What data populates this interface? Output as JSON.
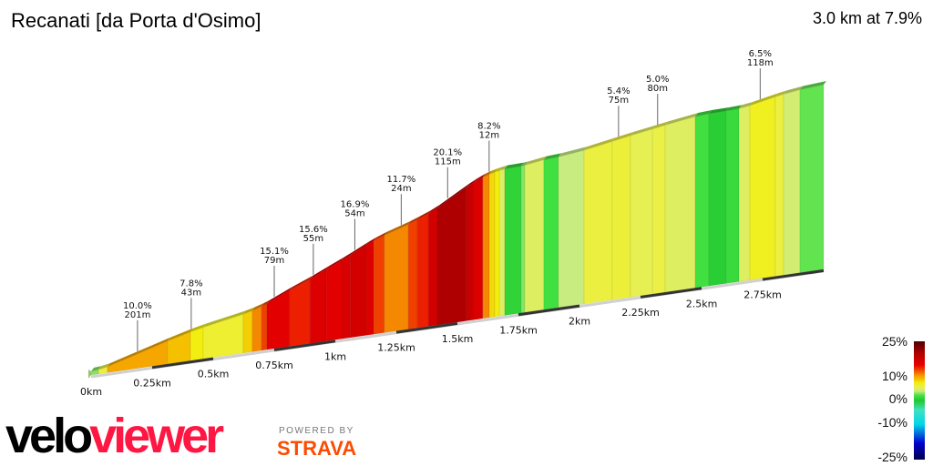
{
  "header": {
    "title": "Recanati [da Porta d'Osimo]",
    "summary": "3.0 km at 7.9%"
  },
  "chart_data": {
    "type": "area",
    "title": "Recanati [da Porta d'Osimo]",
    "xlabel": "",
    "ylabel": "",
    "xlim_km": [
      0,
      3.0
    ],
    "x_ticks": [
      "0km",
      "0.25km",
      "0.5km",
      "0.75km",
      "1km",
      "1.25km",
      "1.5km",
      "1.75km",
      "2km",
      "2.25km",
      "2.5km",
      "2.75km"
    ],
    "x_tick_values": [
      0,
      0.25,
      0.5,
      0.75,
      1,
      1.25,
      1.5,
      1.75,
      2,
      2.25,
      2.5,
      2.75
    ],
    "segments": [
      [
        0.03,
        3
      ],
      [
        0.067,
        6
      ],
      [
        0.313,
        10
      ],
      [
        0.407,
        9
      ],
      [
        0.459,
        7.5
      ],
      [
        0.623,
        6.5
      ],
      [
        0.66,
        8.5
      ],
      [
        0.698,
        11
      ],
      [
        0.72,
        13
      ],
      [
        0.813,
        15.5
      ],
      [
        0.896,
        14
      ],
      [
        0.963,
        16
      ],
      [
        1.026,
        15.5
      ],
      [
        1.063,
        16.5
      ],
      [
        1.127,
        17
      ],
      [
        1.157,
        16
      ],
      [
        1.201,
        13
      ],
      [
        1.299,
        11
      ],
      [
        1.336,
        13
      ],
      [
        1.381,
        14
      ],
      [
        1.418,
        17
      ],
      [
        1.537,
        20.1
      ],
      [
        1.567,
        18
      ],
      [
        1.604,
        16
      ],
      [
        1.631,
        11
      ],
      [
        1.653,
        8.2
      ],
      [
        1.672,
        7.5
      ],
      [
        1.694,
        5
      ],
      [
        1.761,
        1
      ],
      [
        1.776,
        3
      ],
      [
        1.854,
        5
      ],
      [
        1.914,
        2
      ],
      [
        2.019,
        4
      ],
      [
        2.134,
        6
      ],
      [
        2.209,
        6.2
      ],
      [
        2.299,
        5.4
      ],
      [
        2.351,
        5.8
      ],
      [
        2.474,
        5
      ],
      [
        2.53,
        2
      ],
      [
        2.601,
        0.5
      ],
      [
        2.653,
        1.5
      ],
      [
        2.698,
        5
      ],
      [
        2.802,
        7
      ],
      [
        2.836,
        6
      ],
      [
        2.903,
        4.5
      ],
      [
        3.0,
        2.5
      ]
    ],
    "annotations": [
      {
        "km": 0.19,
        "grade": "10.0%",
        "length": "201m"
      },
      {
        "km": 0.41,
        "grade": "7.8%",
        "length": "43m"
      },
      {
        "km": 0.75,
        "grade": "15.1%",
        "length": "79m"
      },
      {
        "km": 0.91,
        "grade": "15.6%",
        "length": "55m"
      },
      {
        "km": 1.08,
        "grade": "16.9%",
        "length": "54m"
      },
      {
        "km": 1.27,
        "grade": "11.7%",
        "length": "24m"
      },
      {
        "km": 1.46,
        "grade": "20.1%",
        "length": "115m"
      },
      {
        "km": 1.63,
        "grade": "8.2%",
        "length": "12m"
      },
      {
        "km": 2.16,
        "grade": "5.4%",
        "length": "75m"
      },
      {
        "km": 2.32,
        "grade": "5.0%",
        "length": "80m"
      },
      {
        "km": 2.74,
        "grade": "6.5%",
        "length": "118m"
      }
    ],
    "legend": {
      "labels": [
        "25%",
        "10%",
        "0%",
        "-10%",
        "-25%"
      ],
      "values": [
        25,
        10,
        0,
        -10,
        -25
      ],
      "placement": "bottom-right"
    },
    "color_scale": [
      [
        -25,
        "#00004a"
      ],
      [
        -18,
        "#0000d0"
      ],
      [
        -10,
        "#00d8e8"
      ],
      [
        -4,
        "#40e0c0"
      ],
      [
        0,
        "#20c830"
      ],
      [
        2,
        "#40e040"
      ],
      [
        4,
        "#c8ec80"
      ],
      [
        5.5,
        "#e8f050"
      ],
      [
        7.5,
        "#f2ee10"
      ],
      [
        9,
        "#f5c000"
      ],
      [
        10.5,
        "#f59a00"
      ],
      [
        13,
        "#f04000"
      ],
      [
        15,
        "#e80000"
      ],
      [
        18,
        "#c80000"
      ],
      [
        20,
        "#b00000"
      ],
      [
        25,
        "#500000"
      ]
    ]
  },
  "branding": {
    "logo_part1": "velo",
    "logo_part2": "viewer",
    "powered": "POWERED BY",
    "strava": "STRAVA"
  }
}
